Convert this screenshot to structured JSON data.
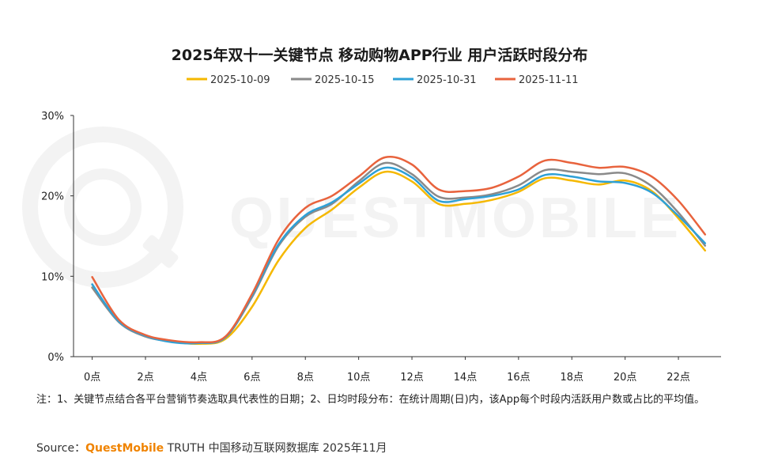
{
  "chart_data": {
    "type": "line",
    "title": "2025年双十一关键节点 移动购物APP行业 用户活跃时段分布",
    "xlabel": "",
    "ylabel": "",
    "x": [
      0,
      1,
      2,
      3,
      4,
      5,
      6,
      7,
      8,
      9,
      10,
      11,
      12,
      13,
      14,
      15,
      16,
      17,
      18,
      19,
      20,
      21,
      22,
      23
    ],
    "x_tick_labels": [
      "0点",
      "2点",
      "4点",
      "6点",
      "8点",
      "10点",
      "12点",
      "14点",
      "16点",
      "18点",
      "20点",
      "22点"
    ],
    "x_tick_positions": [
      0,
      2,
      4,
      6,
      8,
      10,
      12,
      14,
      16,
      18,
      20,
      22
    ],
    "xlim": [
      -0.7,
      23.6
    ],
    "ylim": [
      0,
      30
    ],
    "y_ticks": [
      0,
      10,
      20,
      30
    ],
    "y_tick_labels": [
      "0%",
      "10%",
      "20%",
      "30%"
    ],
    "grid": false,
    "legend_position": "top-center",
    "series": [
      {
        "name": "2025-10-09",
        "color": "#f5b800",
        "values": [
          8.6,
          4.4,
          2.6,
          1.9,
          1.6,
          2.2,
          6.2,
          12.0,
          16.0,
          18.3,
          21.0,
          23.0,
          21.8,
          19.0,
          19.0,
          19.5,
          20.5,
          22.2,
          21.9,
          21.4,
          21.9,
          20.6,
          17.2,
          13.2
        ]
      },
      {
        "name": "2025-10-15",
        "color": "#8a8a8a",
        "values": [
          8.6,
          4.3,
          2.5,
          1.9,
          1.7,
          2.4,
          7.4,
          13.8,
          17.4,
          19.0,
          21.8,
          24.1,
          22.7,
          19.9,
          19.8,
          20.2,
          21.3,
          23.2,
          23.0,
          22.7,
          22.8,
          21.2,
          17.9,
          13.8
        ]
      },
      {
        "name": "2025-10-31",
        "color": "#2ea0d6",
        "values": [
          9.0,
          4.4,
          2.6,
          1.8,
          1.7,
          2.4,
          7.6,
          14.0,
          17.6,
          19.2,
          21.5,
          23.5,
          22.3,
          19.4,
          19.6,
          20.0,
          20.8,
          22.6,
          22.4,
          21.8,
          21.6,
          20.4,
          17.5,
          14.1
        ]
      },
      {
        "name": "2025-11-11",
        "color": "#e8633d",
        "values": [
          9.9,
          4.6,
          2.7,
          2.0,
          1.8,
          2.5,
          7.8,
          14.6,
          18.5,
          20.0,
          22.4,
          24.8,
          23.9,
          20.8,
          20.6,
          21.0,
          22.4,
          24.4,
          24.1,
          23.5,
          23.6,
          22.4,
          19.4,
          15.2
        ]
      }
    ]
  },
  "note": "注：1、关键节点结合各平台营销节奏选取具代表性的日期；2、日均时段分布：在统计周期(日)内，该App每个时段内活跃用户数或占比的平均值。",
  "source": {
    "label": "Source：",
    "brand": "QuestMobile",
    "text": " TRUTH 中国移动互联网数据库 2025年11月"
  }
}
